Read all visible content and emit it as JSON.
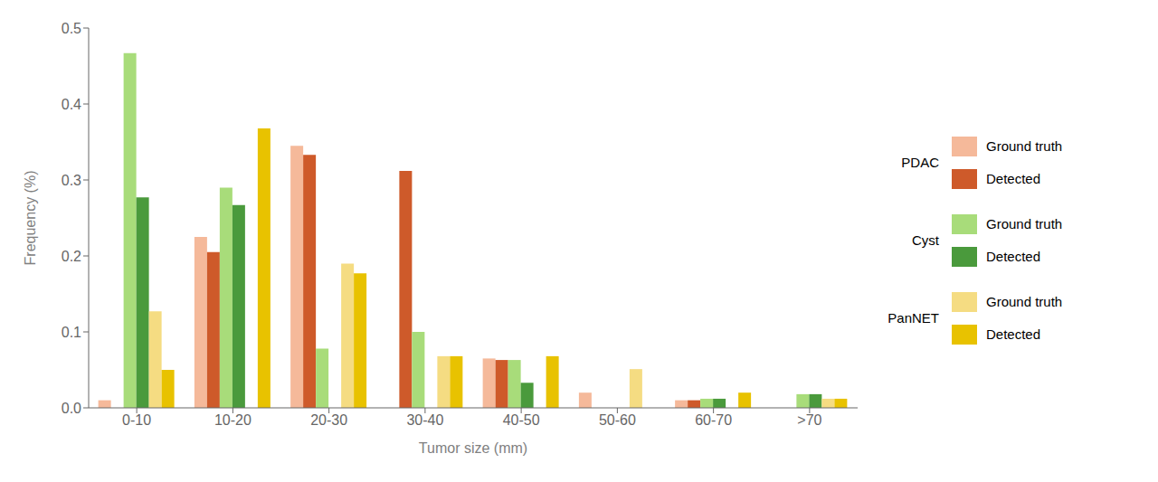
{
  "chart_data": {
    "type": "bar",
    "categories": [
      "0-10",
      "10-20",
      "20-30",
      "30-40",
      "40-50",
      "50-60",
      "60-70",
      ">70"
    ],
    "series": [
      {
        "name": "Ground truth",
        "group": "PDAC",
        "color": "#F5B99A",
        "values": [
          0.01,
          0.225,
          0.345,
          0.0,
          0.065,
          0.02,
          0.01,
          0.0
        ]
      },
      {
        "name": "Detected",
        "group": "PDAC",
        "color": "#CE5A2A",
        "values": [
          0.0,
          0.205,
          0.333,
          0.312,
          0.063,
          0.0,
          0.01,
          0.0
        ]
      },
      {
        "name": "Ground truth",
        "group": "Cyst",
        "color": "#A8DC7A",
        "values": [
          0.467,
          0.29,
          0.078,
          0.1,
          0.063,
          0.0,
          0.012,
          0.018
        ]
      },
      {
        "name": "Detected",
        "group": "Cyst",
        "color": "#4A9A3C",
        "values": [
          0.277,
          0.267,
          0.0,
          0.0,
          0.033,
          0.0,
          0.012,
          0.018
        ]
      },
      {
        "name": "Ground truth",
        "group": "PanNET",
        "color": "#F5DC82",
        "values": [
          0.127,
          0.0,
          0.19,
          0.068,
          0.0,
          0.051,
          0.0,
          0.012
        ]
      },
      {
        "name": "Detected",
        "group": "PanNET",
        "color": "#E8C200",
        "values": [
          0.05,
          0.368,
          0.177,
          0.068,
          0.068,
          0.0,
          0.02,
          0.012
        ]
      }
    ],
    "xlabel": "Tumor size (mm)",
    "ylabel": "Frequency (%)",
    "ylim": [
      0,
      0.5
    ],
    "yticks": [
      {
        "value": 0,
        "label": "0.0"
      },
      0.1,
      0.2,
      0.3,
      0.4,
      0.5
    ],
    "grid": false,
    "legend": "right"
  }
}
